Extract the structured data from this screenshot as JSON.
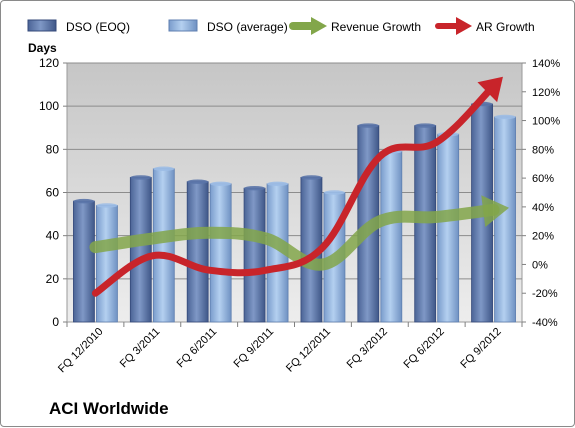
{
  "chart_data": {
    "type": "bar",
    "title": "ACI Worldwide",
    "ylabel": "Days",
    "categories": [
      "FQ 12/2010",
      "FQ 3/2011",
      "FQ 6/2011",
      "FQ 9/2011",
      "FQ 12/2011",
      "FQ 3/2012",
      "FQ 6/2012",
      "FQ 9/2012"
    ],
    "ylim": [
      0,
      120
    ],
    "yticks": [
      "0",
      "20",
      "40",
      "60",
      "80",
      "100",
      "120"
    ],
    "y2lim": [
      -40,
      140
    ],
    "y2ticks": [
      "-40%",
      "-20%",
      "0%",
      "20%",
      "40%",
      "60%",
      "80%",
      "100%",
      "120%",
      "140%"
    ],
    "legend_position": "top",
    "series": [
      {
        "name": "DSO (EOQ)",
        "kind": "bar",
        "color": "#5b76a8",
        "values": [
          56,
          67,
          65,
          62,
          67,
          91,
          91,
          101
        ]
      },
      {
        "name": "DSO (average)",
        "kind": "bar",
        "color": "#8fb1dc",
        "values": [
          54,
          71,
          64,
          64,
          60,
          79,
          87,
          95
        ]
      },
      {
        "name": "Revenue Growth",
        "kind": "line",
        "axis": "right",
        "color": "#82a64a",
        "values": [
          12,
          18,
          22,
          18,
          0,
          30,
          33,
          38
        ]
      },
      {
        "name": "AR Growth",
        "kind": "line",
        "axis": "right",
        "color": "#c8242a",
        "values": [
          -20,
          6,
          -4,
          -4,
          12,
          75,
          85,
          124
        ]
      }
    ]
  }
}
